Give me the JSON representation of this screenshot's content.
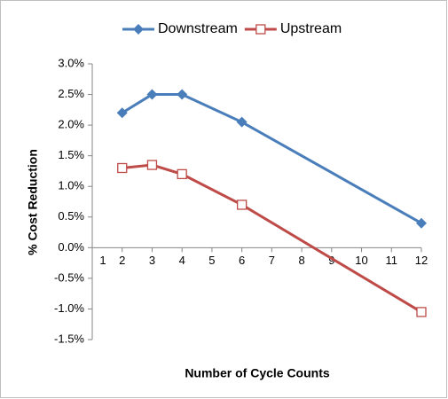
{
  "chart_data": {
    "type": "line",
    "y_axis_label": "% Cost Reduction",
    "x_axis_label": "Number of Cycle Counts",
    "x": [
      2,
      3,
      4,
      6,
      12
    ],
    "series": [
      {
        "name": "Downstream",
        "color": "#4a7ebb",
        "marker": "diamond",
        "values": [
          2.2,
          2.5,
          2.5,
          2.05,
          0.4
        ]
      },
      {
        "name": "Upstream",
        "color": "#be4b48",
        "marker": "square-open",
        "values": [
          1.3,
          1.35,
          1.2,
          0.7,
          -1.05
        ]
      }
    ],
    "xlim": [
      1,
      12
    ],
    "xticks": [
      1,
      2,
      3,
      4,
      5,
      6,
      7,
      8,
      9,
      10,
      11,
      12
    ],
    "ylim": [
      -1.5,
      3
    ],
    "yticks": [
      {
        "value": -1.5,
        "label": "-1.5%"
      },
      {
        "value": -1,
        "label": "-1.0%"
      },
      {
        "value": -0.5,
        "label": "-0.5%"
      },
      {
        "value": 0,
        "label": "0.0%"
      },
      {
        "value": 0.5,
        "label": "0.5%"
      },
      {
        "value": 1,
        "label": "1.0%"
      },
      {
        "value": 1.5,
        "label": "1.5%"
      },
      {
        "value": 2,
        "label": "2.0%"
      },
      {
        "value": 2.5,
        "label": "2.5%"
      },
      {
        "value": 3,
        "label": "3.0%"
      }
    ],
    "grid": false,
    "legend": "top"
  }
}
